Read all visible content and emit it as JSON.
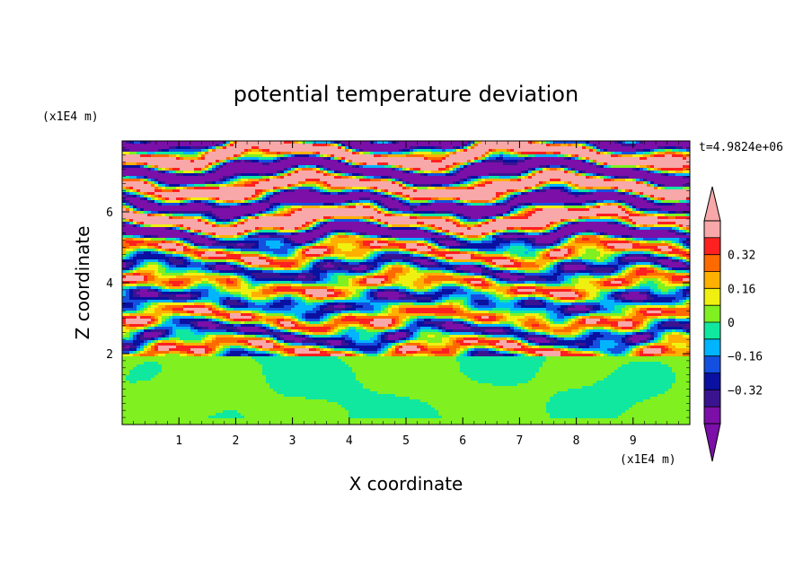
{
  "chart_data": {
    "type": "heatmap",
    "title": "potential temperature deviation",
    "xlabel": "X coordinate",
    "ylabel": "Z coordinate",
    "x_unit": "(x1E4 m)",
    "y_unit": "(x1E4 m)",
    "time_label": "t=4.9824e+06",
    "xlim": [
      0,
      10
    ],
    "ylim": [
      0,
      8
    ],
    "x_ticks": [
      "1",
      "2",
      "3",
      "4",
      "5",
      "6",
      "7",
      "8",
      "9"
    ],
    "y_ticks": [
      "2",
      "4",
      "6"
    ],
    "colorbar": {
      "levels": [
        -0.48,
        -0.4,
        -0.32,
        -0.24,
        -0.16,
        -0.08,
        0,
        0.08,
        0.16,
        0.24,
        0.32,
        0.4,
        0.48
      ],
      "tick_labels": [
        "0.32",
        "0.16",
        "0",
        "−0.16",
        "−0.32"
      ],
      "tick_values": [
        0.32,
        0.16,
        0,
        -0.16,
        -0.32
      ],
      "colors": [
        "#7b0fa8",
        "#3a1490",
        "#0a10a0",
        "#1450e0",
        "#00b4ff",
        "#10e8a0",
        "#80f020",
        "#f0f010",
        "#ffb000",
        "#ff6a00",
        "#ff2020",
        "#f8a8a8"
      ],
      "under_color": "#7b0fa8",
      "over_color": "#f8a8a8"
    }
  }
}
